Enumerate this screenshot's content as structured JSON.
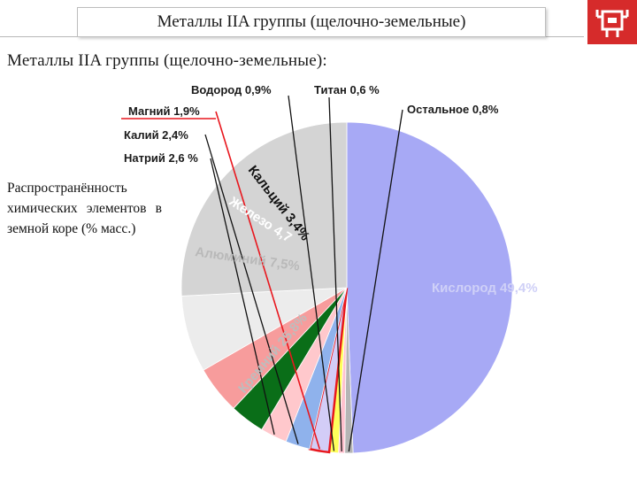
{
  "header": {
    "title": "Металлы IIA группы (щелочно-земельные)",
    "subtitle": "Металлы IIA группы (щелочно-земельные):"
  },
  "side_note": "Распространённость химических элементов в земной коре (% масс.)",
  "logo": {
    "icon": "robot-icon",
    "color": "#d62b2b"
  },
  "chart_data": {
    "type": "pie",
    "title": "",
    "slices": [
      {
        "label": "Кислород 49,4%",
        "value": 49.4,
        "color": "#a7a9f5",
        "label_style": "inside",
        "label_color": "#cfd0f7"
      },
      {
        "label": "Остальное 0,8%",
        "value": 0.8,
        "color": "#b5b5b5",
        "label_style": "callout"
      },
      {
        "label": "Титан 0,6 %",
        "value": 0.6,
        "color": "#ffc2cf",
        "label_style": "callout"
      },
      {
        "label": "Водород 0,9%",
        "value": 0.9,
        "color": "#ffff5a",
        "label_style": "callout"
      },
      {
        "label": "Магний 1,9%",
        "value": 1.9,
        "color": "#d3cdf7",
        "label_style": "callout",
        "highlight": "#e8171e"
      },
      {
        "label": "Калий 2,4%",
        "value": 2.4,
        "color": "#8fb2ec",
        "label_style": "callout"
      },
      {
        "label": "Натрий 2,6 %",
        "value": 2.6,
        "color": "#ffc8cc",
        "label_style": "callout"
      },
      {
        "label": "Кальций 3,4%",
        "value": 3.4,
        "color": "#0a6e18",
        "label_style": "inside",
        "label_color": "#111111"
      },
      {
        "label": "Железо 4,7",
        "value": 4.7,
        "color": "#f79c9c",
        "label_style": "inside",
        "label_color": "#ffffff"
      },
      {
        "label": "Алюминий 7,5%",
        "value": 7.5,
        "color": "#ececec",
        "label_style": "inside",
        "label_color": "#b9b9b9"
      },
      {
        "label": "Кремний 25,8%",
        "value": 25.8,
        "color": "#d4d4d4",
        "label_style": "inside",
        "label_color": "#bdbdbd"
      }
    ],
    "legend": "none"
  }
}
